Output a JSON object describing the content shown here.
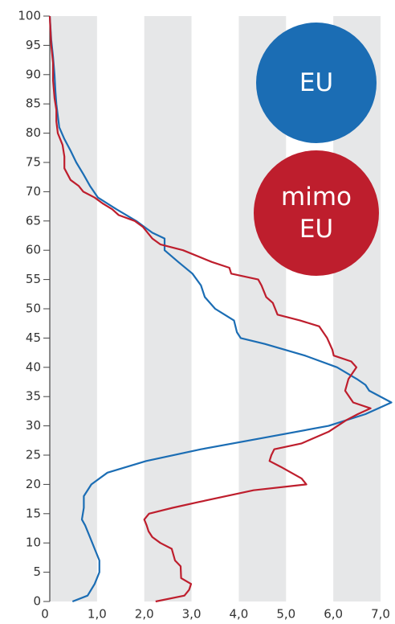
{
  "chart_data": {
    "type": "line",
    "orientation": "horizontal",
    "xlim": [
      0,
      7
    ],
    "xticks": [
      0,
      {
        "value": 1,
        "label": "1,0"
      },
      {
        "value": 2,
        "label": "2,0"
      },
      {
        "value": 3,
        "label": "3,0"
      },
      {
        "value": 4,
        "label": "4,0"
      },
      {
        "value": 5,
        "label": "5,0"
      },
      {
        "value": 6,
        "label": "6,0"
      },
      {
        "value": 7,
        "label": "7,0"
      }
    ],
    "ylim": [
      0,
      100
    ],
    "yticks": [
      0,
      5,
      10,
      15,
      20,
      25,
      30,
      35,
      40,
      45,
      50,
      55,
      60,
      65,
      70,
      75,
      80,
      85,
      90,
      95,
      100
    ],
    "bands": true,
    "series": [
      {
        "name": "EU",
        "color": "#1b6db4",
        "y": [
          0,
          1,
          3,
          5,
          7,
          9,
          11,
          13,
          14,
          16,
          18,
          20,
          22,
          24,
          26,
          28,
          30,
          32,
          34,
          36,
          37,
          38,
          40,
          42,
          44,
          45,
          46,
          48,
          49,
          50,
          52,
          54,
          56,
          58,
          60,
          62,
          63,
          64,
          65,
          67,
          69,
          71,
          73,
          75,
          77,
          79,
          81,
          83,
          85,
          87,
          90,
          93,
          96,
          100
        ],
        "values": [
          0.48,
          0.8,
          0.95,
          1.05,
          1.05,
          0.95,
          0.85,
          0.75,
          0.68,
          0.72,
          0.72,
          0.88,
          1.22,
          2.04,
          3.2,
          4.55,
          5.9,
          6.68,
          7.23,
          6.76,
          6.68,
          6.5,
          6.08,
          5.4,
          4.55,
          4.04,
          3.96,
          3.9,
          3.7,
          3.5,
          3.28,
          3.2,
          3.02,
          2.72,
          2.43,
          2.43,
          2.17,
          2.0,
          1.83,
          1.41,
          1.02,
          0.85,
          0.71,
          0.56,
          0.44,
          0.31,
          0.2,
          0.17,
          0.14,
          0.12,
          0.1,
          0.07,
          0.03,
          0
        ]
      },
      {
        "name": "mimo EU",
        "color": "#be1e2d",
        "y": [
          0,
          1,
          2,
          3,
          4,
          6,
          7,
          9,
          10,
          11,
          12,
          13,
          14,
          15,
          16,
          17,
          19,
          20,
          21,
          23,
          24,
          25,
          26,
          27,
          29,
          31,
          32,
          33,
          34,
          36,
          38,
          40,
          41,
          42,
          43,
          45,
          47,
          48,
          49,
          51,
          52,
          54,
          55,
          56,
          57,
          58,
          60,
          61,
          62,
          64,
          65,
          66,
          67,
          68,
          69,
          70,
          71,
          72,
          74,
          76,
          78,
          80,
          82,
          84,
          86,
          89,
          92,
          95,
          100
        ],
        "values": [
          2.24,
          2.85,
          2.95,
          2.99,
          2.78,
          2.77,
          2.65,
          2.58,
          2.34,
          2.17,
          2.09,
          2.05,
          2.0,
          2.1,
          2.6,
          3.16,
          4.31,
          5.43,
          5.33,
          4.89,
          4.65,
          4.69,
          4.75,
          5.33,
          5.9,
          6.28,
          6.52,
          6.79,
          6.42,
          6.25,
          6.32,
          6.49,
          6.38,
          6.01,
          5.98,
          5.87,
          5.7,
          5.3,
          4.82,
          4.72,
          4.58,
          4.48,
          4.41,
          3.84,
          3.8,
          3.43,
          2.82,
          2.34,
          2.17,
          1.97,
          1.8,
          1.46,
          1.32,
          1.12,
          0.95,
          0.71,
          0.61,
          0.44,
          0.31,
          0.31,
          0.27,
          0.17,
          0.14,
          0.14,
          0.1,
          0.07,
          0.07,
          0.03,
          0
        ]
      }
    ]
  }
}
